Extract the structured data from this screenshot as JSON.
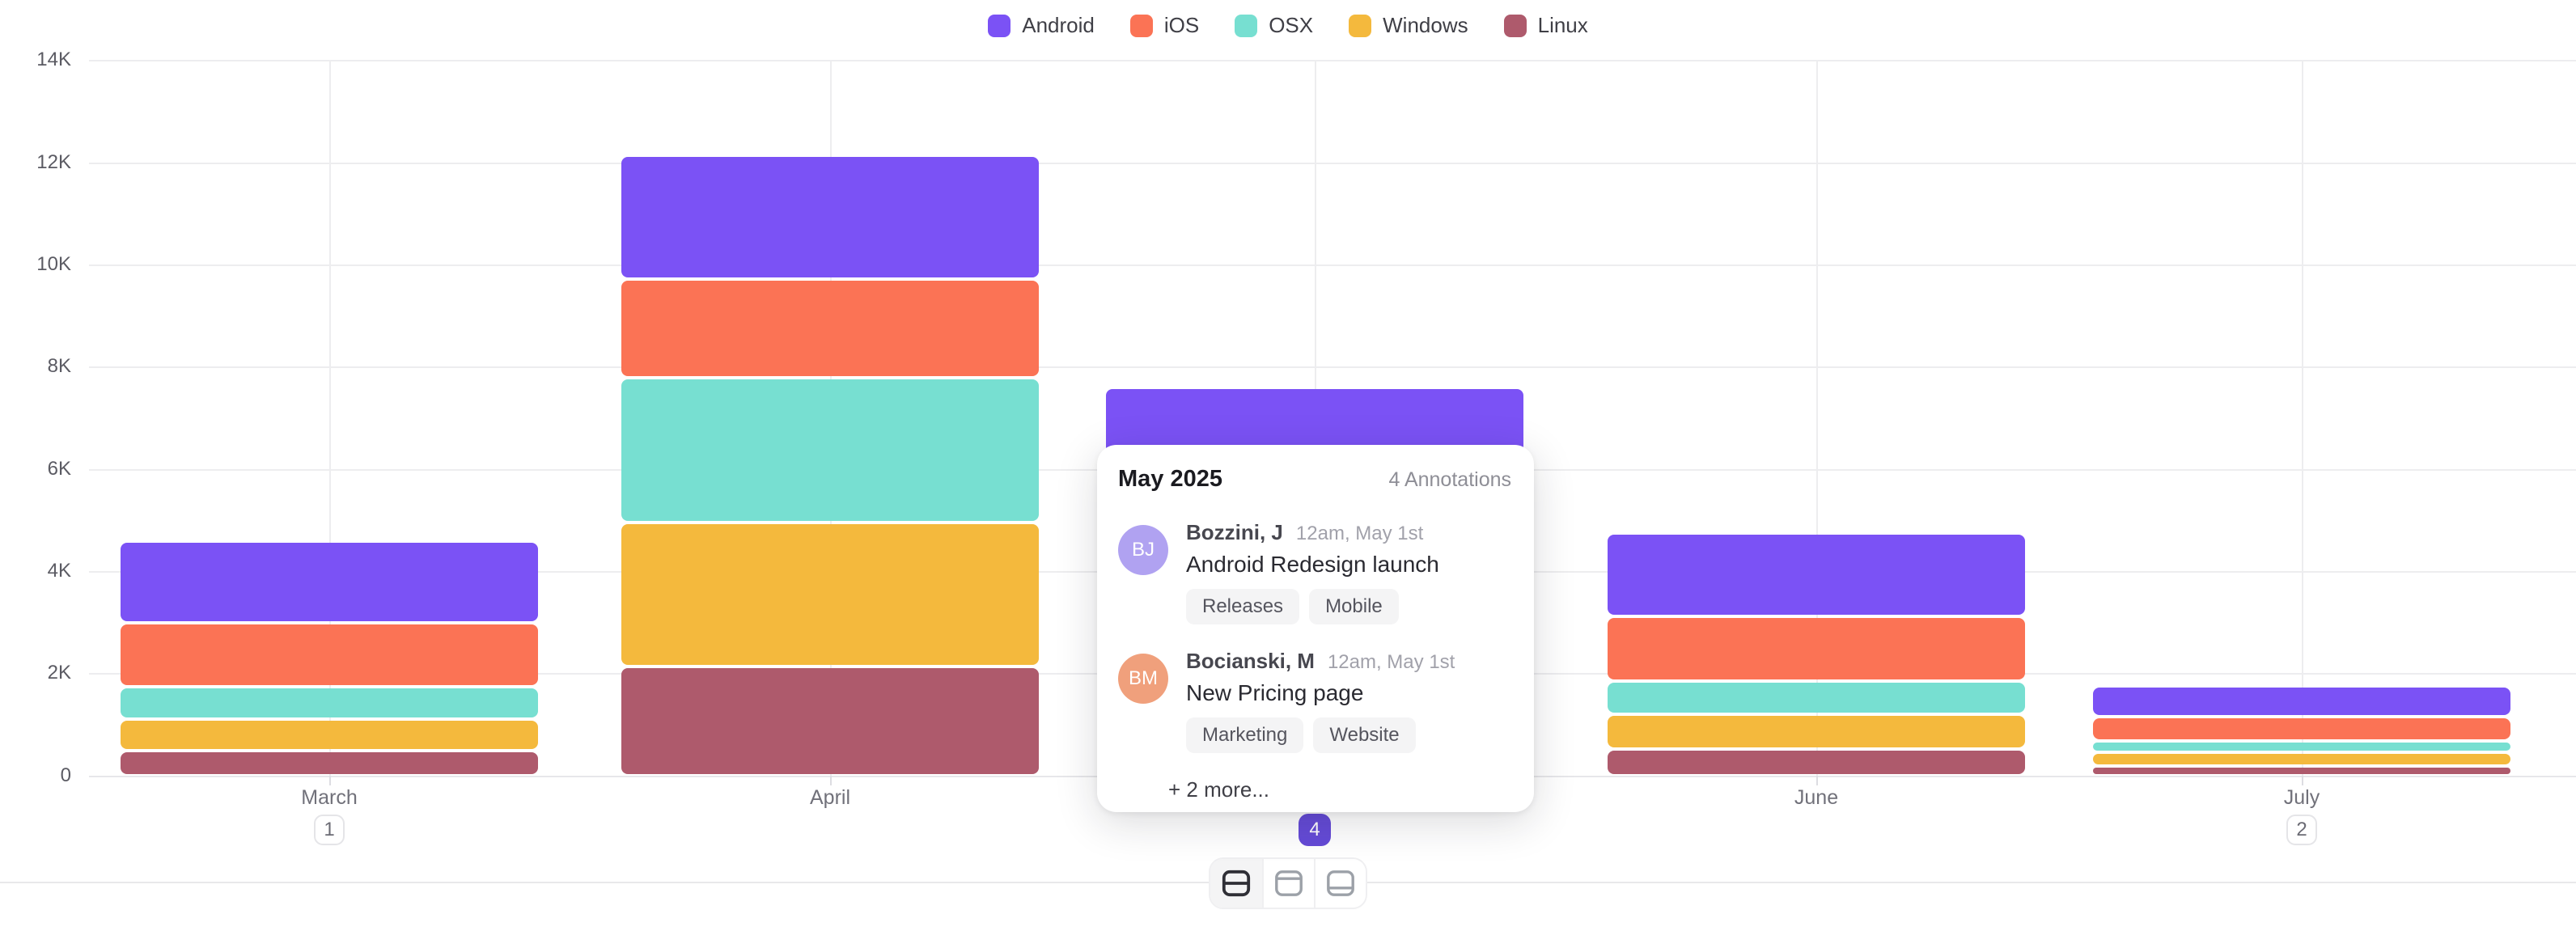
{
  "chart_data": {
    "type": "bar",
    "stacked": true,
    "title": "",
    "xlabel": "",
    "ylabel": "",
    "categories": [
      "March",
      "April",
      "May",
      "June",
      "July"
    ],
    "series": [
      {
        "name": "Android",
        "color": "#7b52f5",
        "values": [
          1600,
          2420,
          2000,
          1620,
          600
        ]
      },
      {
        "name": "iOS",
        "color": "#fb7355",
        "values": [
          1250,
          1940,
          1600,
          1280,
          475
        ]
      },
      {
        "name": "OSX",
        "color": "#77dfd1",
        "values": [
          640,
          2830,
          1500,
          640,
          230
        ]
      },
      {
        "name": "Windows",
        "color": "#f4b93d",
        "values": [
          620,
          2820,
          1400,
          680,
          255
        ]
      },
      {
        "name": "Linux",
        "color": "#ae5a6c",
        "values": [
          480,
          2130,
          1100,
          520,
          190
        ]
      }
    ],
    "ylim": [
      0,
      14000
    ],
    "ytick_step": 2000,
    "yticks": [
      "0",
      "2K",
      "4K",
      "6K",
      "8K",
      "10K",
      "12K",
      "14K"
    ],
    "grid": true,
    "legend_position": "top",
    "annotation_badges": [
      {
        "month": "March",
        "count": "1",
        "active": false
      },
      {
        "month": "May",
        "count": "4",
        "active": true
      },
      {
        "month": "July",
        "count": "2",
        "active": false
      }
    ],
    "badge_active_color": "#654bd7"
  },
  "tooltip": {
    "title": "May 2025",
    "count_label": "4 Annotations",
    "annotations": [
      {
        "avatar_initials": "BJ",
        "avatar_color": "#b0a2f1",
        "author": "Bozzini, J",
        "timestamp": "12am, May 1st",
        "title": "Android Redesign launch",
        "tags": [
          "Releases",
          "Mobile"
        ]
      },
      {
        "avatar_initials": "BM",
        "avatar_color": "#f0a07c",
        "author": "Bocianski, M",
        "timestamp": "12am, May 1st",
        "title": "New Pricing page",
        "tags": [
          "Marketing",
          "Website"
        ]
      }
    ],
    "more_label": "+ 2 more..."
  },
  "toolbar": {
    "buttons": [
      {
        "name": "layout-split-middle",
        "active": true
      },
      {
        "name": "layout-line-top",
        "active": false
      },
      {
        "name": "layout-line-bottom",
        "active": false
      }
    ]
  }
}
